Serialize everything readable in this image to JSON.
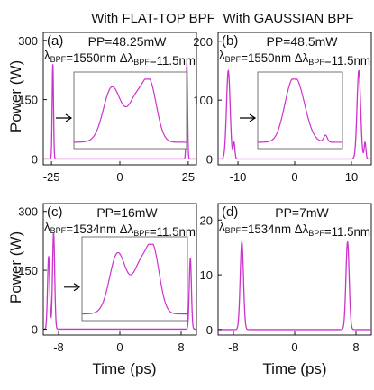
{
  "header": {
    "col_titles": [
      "With FLAT-TOP BPF",
      "With GAUSSIAN BPF"
    ],
    "row_ylabels": [
      "Power (W)",
      "Power (W)"
    ],
    "col_xlabels": [
      "Time (ps)",
      "Time (ps)"
    ]
  },
  "colors": {
    "trace": "#cc33cc",
    "axis": "#000000",
    "inset_frame": "#666666"
  },
  "chart_data": [
    {
      "type": "line",
      "panel": "(a)",
      "annotation": {
        "pp": "PP=48.25mW",
        "lambda": "λ",
        "lambda_sub": "BPF",
        "lambda_val": "=1550nm Δλ",
        "dl_sub": "BPF",
        "dl_val": "=11.5nm"
      },
      "xlim": [
        -28,
        28
      ],
      "ylim": [
        -15,
        320
      ],
      "xticks": [
        -25,
        0,
        25
      ],
      "yticks": [
        0,
        150,
        300
      ],
      "series": [
        {
          "pulses": [
            {
              "center": -24.5,
              "peak": 240,
              "width": 0.35
            },
            {
              "center": 24.5,
              "peak": 240,
              "width": 0.35
            }
          ]
        }
      ],
      "inset": {
        "shape": "flat-top",
        "has_arrow": true
      }
    },
    {
      "type": "line",
      "panel": "(b)",
      "annotation": {
        "pp": "PP=48.5mW",
        "lambda": "λ",
        "lambda_sub": "BPF",
        "lambda_val": "=1550nm Δλ",
        "dl_sub": "BPF",
        "dl_val": "=11.5nm"
      },
      "xlim": [
        -13.5,
        13.5
      ],
      "ylim": [
        -10,
        215
      ],
      "xticks": [
        -10,
        0,
        10
      ],
      "yticks": [
        0,
        100,
        200
      ],
      "series": [
        {
          "pulses": [
            {
              "center": -11.7,
              "peak": 150,
              "width": 0.45
            },
            {
              "center": -10.7,
              "peak": 28,
              "width": 0.22
            },
            {
              "center": 11.3,
              "peak": 150,
              "width": 0.45
            },
            {
              "center": 12.4,
              "peak": 28,
              "width": 0.22
            }
          ]
        }
      ],
      "inset": {
        "shape": "gaussian",
        "has_arrow": true
      }
    },
    {
      "type": "line",
      "panel": "(c)",
      "annotation": {
        "pp": "PP=16mW",
        "lambda": "λ",
        "lambda_sub": "BPF",
        "lambda_val": "=1534nm Δλ",
        "dl_sub": "BPF",
        "dl_val": "=11.5nm"
      },
      "xlim": [
        -10,
        10
      ],
      "ylim": [
        -15,
        320
      ],
      "xticks": [
        -8,
        0,
        8
      ],
      "yticks": [
        0,
        150,
        300
      ],
      "series": [
        {
          "pulses": [
            {
              "center": -9.3,
              "peak": 185,
              "width": 0.2
            },
            {
              "center": -8.65,
              "peak": 245,
              "width": 0.2
            },
            {
              "center": 9.2,
              "peak": 180,
              "width": 0.2
            }
          ]
        }
      ],
      "inset": {
        "shape": "flat-top",
        "has_arrow": true
      }
    },
    {
      "type": "line",
      "panel": "(d)",
      "annotation": {
        "pp": "PP=7mW",
        "lambda": "λ",
        "lambda_sub": "BPF",
        "lambda_val": "=1534nm Δλ",
        "dl_sub": "BPF",
        "dl_val": "=11.5nm"
      },
      "xlim": [
        -10,
        10
      ],
      "ylim": [
        -1,
        23
      ],
      "xticks": [
        -8,
        0,
        8
      ],
      "yticks": [
        0,
        10,
        20
      ],
      "series": [
        {
          "pulses": [
            {
              "center": -6.9,
              "peak": 16,
              "width": 0.3
            },
            {
              "center": 6.9,
              "peak": 16,
              "width": 0.3
            }
          ]
        }
      ],
      "inset": null
    }
  ]
}
